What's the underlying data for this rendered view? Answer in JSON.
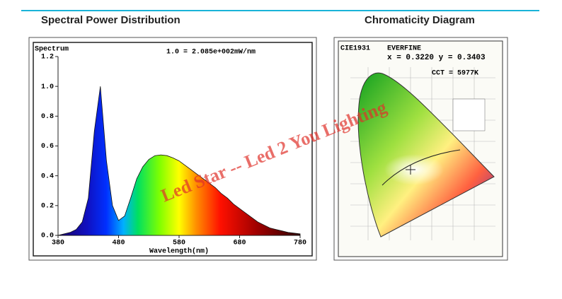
{
  "headings": {
    "left": "Spectral Power Distribution",
    "right": "Chromaticity Diagram"
  },
  "chart_data": {
    "type": "area",
    "y_label": "Spectrum",
    "x_label": "Wavelength(nm)",
    "annotation": "1.0 = 2.085e+002mW/nm",
    "x": [
      380,
      390,
      400,
      410,
      420,
      430,
      440,
      450,
      460,
      470,
      480,
      490,
      500,
      510,
      520,
      530,
      540,
      550,
      560,
      570,
      580,
      590,
      600,
      610,
      620,
      630,
      640,
      650,
      660,
      670,
      680,
      690,
      700,
      710,
      720,
      730,
      740,
      750,
      760,
      770,
      780
    ],
    "values": [
      0.0,
      0.01,
      0.02,
      0.04,
      0.09,
      0.25,
      0.7,
      1.0,
      0.5,
      0.2,
      0.1,
      0.13,
      0.25,
      0.38,
      0.46,
      0.51,
      0.535,
      0.54,
      0.535,
      0.52,
      0.5,
      0.47,
      0.44,
      0.41,
      0.38,
      0.35,
      0.32,
      0.28,
      0.25,
      0.21,
      0.18,
      0.15,
      0.12,
      0.09,
      0.07,
      0.05,
      0.04,
      0.03,
      0.02,
      0.015,
      0.01
    ],
    "xlim": [
      380,
      780
    ],
    "xticks": [
      380,
      480,
      580,
      680,
      780
    ],
    "ylim": [
      0,
      1.2
    ],
    "yticks": [
      {
        "value": 0,
        "label": "0.0"
      },
      0.2,
      0.4,
      0.6,
      0.8,
      {
        "value": 1,
        "label": "1.0"
      },
      1.2
    ]
  },
  "chromaticity": {
    "model": "CIE1931",
    "brand": "EVERFINE",
    "coordinates": "x = 0.3220 y = 0.3403",
    "cct": "CCT = 5977K"
  },
  "watermark": "Led Star -- Led 2 You Lighting"
}
